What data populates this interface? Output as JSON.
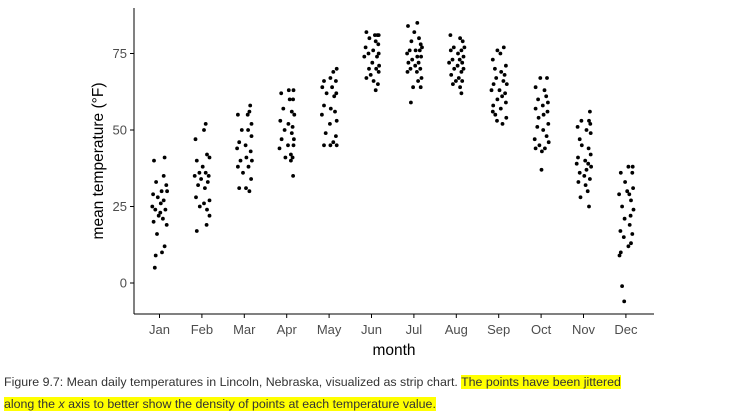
{
  "chart_data": {
    "type": "scatter",
    "style": "strip chart, jittered along x",
    "xlabel": "month",
    "ylabel": "mean temperature (°F)",
    "categories": [
      "Jan",
      "Feb",
      "Mar",
      "Apr",
      "May",
      "Jun",
      "Jul",
      "Aug",
      "Sep",
      "Oct",
      "Nov",
      "Dec"
    ],
    "yticks": [
      0,
      25,
      50,
      75
    ],
    "ylim": [
      -8,
      89
    ],
    "grid": false,
    "legend": "none",
    "point_color": "#000000",
    "series": [
      {
        "values": [
          [
            -0.13,
            40
          ],
          [
            0.12,
            41
          ],
          [
            0.1,
            35
          ],
          [
            -0.08,
            33
          ],
          [
            0.16,
            32
          ],
          [
            -0.15,
            29
          ],
          [
            0.05,
            30
          ],
          [
            0.18,
            30
          ],
          [
            -0.04,
            28
          ],
          [
            0.1,
            27
          ],
          [
            -0.17,
            25
          ],
          [
            0.03,
            26
          ],
          [
            -0.1,
            24
          ],
          [
            0.14,
            24
          ],
          [
            -0.02,
            22
          ],
          [
            0.08,
            21
          ],
          [
            -0.14,
            20
          ],
          [
            0.17,
            19
          ],
          [
            -0.06,
            16
          ],
          [
            0.12,
            12
          ],
          [
            0.06,
            10
          ],
          [
            -0.09,
            9
          ],
          [
            -0.11,
            5
          ],
          [
            0.02,
            23
          ]
        ]
      },
      {
        "values": [
          [
            0.09,
            52
          ],
          [
            0.05,
            50
          ],
          [
            -0.15,
            47
          ],
          [
            0.12,
            42
          ],
          [
            0.18,
            41
          ],
          [
            -0.12,
            40
          ],
          [
            0.02,
            38
          ],
          [
            -0.06,
            36
          ],
          [
            0.09,
            36
          ],
          [
            0.16,
            35
          ],
          [
            -0.17,
            35
          ],
          [
            -0.02,
            34
          ],
          [
            0.14,
            33
          ],
          [
            -0.09,
            32
          ],
          [
            0.07,
            31
          ],
          [
            -0.14,
            28
          ],
          [
            0.18,
            27
          ],
          [
            0.05,
            26
          ],
          [
            -0.05,
            25
          ],
          [
            0.12,
            24
          ],
          [
            0.18,
            22
          ],
          [
            0.11,
            19
          ],
          [
            -0.12,
            17
          ]
        ]
      },
      {
        "values": [
          [
            0.14,
            58
          ],
          [
            0.12,
            56
          ],
          [
            -0.15,
            55
          ],
          [
            0.08,
            55
          ],
          [
            0.17,
            52
          ],
          [
            -0.06,
            50
          ],
          [
            0.09,
            50
          ],
          [
            0.17,
            48
          ],
          [
            -0.12,
            46
          ],
          [
            0.03,
            45
          ],
          [
            -0.17,
            44
          ],
          [
            0.15,
            43
          ],
          [
            0.05,
            41
          ],
          [
            -0.09,
            40
          ],
          [
            0.18,
            40
          ],
          [
            -0.15,
            38
          ],
          [
            0.1,
            38
          ],
          [
            -0.03,
            36
          ],
          [
            0.16,
            34
          ],
          [
            -0.12,
            31
          ],
          [
            0.04,
            31
          ],
          [
            0.12,
            30
          ]
        ]
      },
      {
        "values": [
          [
            0.05,
            63
          ],
          [
            0.16,
            63
          ],
          [
            -0.13,
            62
          ],
          [
            0.07,
            60
          ],
          [
            0.15,
            60
          ],
          [
            -0.08,
            57
          ],
          [
            0.12,
            56
          ],
          [
            0.18,
            55
          ],
          [
            -0.15,
            53
          ],
          [
            0.04,
            52
          ],
          [
            0.14,
            51
          ],
          [
            -0.05,
            50
          ],
          [
            0.12,
            49
          ],
          [
            0.17,
            47
          ],
          [
            -0.12,
            47
          ],
          [
            0.03,
            45
          ],
          [
            0.16,
            45
          ],
          [
            -0.17,
            44
          ],
          [
            0.1,
            42
          ],
          [
            0.14,
            41
          ],
          [
            -0.03,
            41
          ],
          [
            0.1,
            40
          ],
          [
            0.15,
            35
          ]
        ]
      },
      {
        "values": [
          [
            0.18,
            70
          ],
          [
            0.1,
            69
          ],
          [
            -0.12,
            66
          ],
          [
            0.03,
            67
          ],
          [
            0.16,
            66
          ],
          [
            -0.16,
            64
          ],
          [
            0.07,
            64
          ],
          [
            0.17,
            62
          ],
          [
            -0.06,
            62
          ],
          [
            0.12,
            61
          ],
          [
            -0.12,
            58
          ],
          [
            0.04,
            57
          ],
          [
            0.14,
            56
          ],
          [
            -0.17,
            55
          ],
          [
            0.18,
            53
          ],
          [
            0.02,
            52
          ],
          [
            -0.08,
            49
          ],
          [
            0.16,
            48
          ],
          [
            0.1,
            46
          ],
          [
            -0.12,
            45
          ],
          [
            0.03,
            45
          ],
          [
            0.18,
            45
          ]
        ]
      },
      {
        "values": [
          [
            -0.12,
            82
          ],
          [
            0.08,
            81
          ],
          [
            0.14,
            81
          ],
          [
            0.17,
            81
          ],
          [
            -0.05,
            80
          ],
          [
            0.1,
            79
          ],
          [
            0.16,
            78
          ],
          [
            -0.14,
            77
          ],
          [
            0.04,
            76
          ],
          [
            0.17,
            75
          ],
          [
            -0.07,
            75
          ],
          [
            0.13,
            74
          ],
          [
            -0.17,
            74
          ],
          [
            0.02,
            72
          ],
          [
            0.18,
            71
          ],
          [
            0.11,
            70
          ],
          [
            -0.06,
            70
          ],
          [
            0.17,
            69
          ],
          [
            -0.12,
            67
          ],
          [
            0.05,
            66
          ],
          [
            0.15,
            65
          ],
          [
            0.1,
            63
          ],
          [
            -0.02,
            68
          ]
        ]
      },
      {
        "values": [
          [
            0.08,
            85
          ],
          [
            -0.14,
            84
          ],
          [
            0.01,
            82
          ],
          [
            0.12,
            80
          ],
          [
            -0.06,
            79
          ],
          [
            0.16,
            78
          ],
          [
            0.19,
            77
          ],
          [
            -0.1,
            76
          ],
          [
            0.04,
            76
          ],
          [
            0.14,
            76
          ],
          [
            -0.16,
            75
          ],
          [
            0.08,
            74
          ],
          [
            0.17,
            74
          ],
          [
            -0.04,
            73
          ],
          [
            0.11,
            72
          ],
          [
            -0.13,
            72
          ],
          [
            0.03,
            71
          ],
          [
            0.15,
            70
          ],
          [
            -0.08,
            70
          ],
          [
            0.07,
            69
          ],
          [
            0.18,
            67
          ],
          [
            -0.02,
            64
          ],
          [
            0.16,
            64
          ],
          [
            -0.07,
            59
          ],
          [
            0.1,
            66
          ],
          [
            -0.15,
            69
          ]
        ]
      },
      {
        "values": [
          [
            -0.14,
            81
          ],
          [
            0.09,
            80
          ],
          [
            0.15,
            79
          ],
          [
            0.19,
            77
          ],
          [
            -0.06,
            77
          ],
          [
            0.12,
            76
          ],
          [
            -0.13,
            76
          ],
          [
            0.04,
            75
          ],
          [
            0.17,
            74
          ],
          [
            -0.09,
            73
          ],
          [
            0.08,
            73
          ],
          [
            0.14,
            72
          ],
          [
            -0.17,
            72
          ],
          [
            0.03,
            71
          ],
          [
            0.17,
            70
          ],
          [
            -0.05,
            70
          ],
          [
            0.12,
            69
          ],
          [
            -0.12,
            68
          ],
          [
            0.06,
            67
          ],
          [
            -0.01,
            66
          ],
          [
            0.14,
            66
          ],
          [
            0.09,
            64
          ],
          [
            0.12,
            62
          ],
          [
            -0.08,
            65
          ]
        ]
      },
      {
        "values": [
          [
            0.12,
            77
          ],
          [
            -0.03,
            76
          ],
          [
            0.04,
            75
          ],
          [
            -0.14,
            73
          ],
          [
            0.17,
            71
          ],
          [
            -0.09,
            70
          ],
          [
            0.06,
            69
          ],
          [
            0.14,
            68
          ],
          [
            -0.06,
            67
          ],
          [
            0.11,
            66
          ],
          [
            0.19,
            65
          ],
          [
            -0.12,
            65
          ],
          [
            0.02,
            63
          ],
          [
            -0.17,
            63
          ],
          [
            0.15,
            62
          ],
          [
            0.08,
            61
          ],
          [
            -0.03,
            60
          ],
          [
            0.17,
            59
          ],
          [
            -0.13,
            58
          ],
          [
            0.05,
            57
          ],
          [
            -0.08,
            55
          ],
          [
            0.18,
            54
          ],
          [
            -0.04,
            53
          ],
          [
            0.09,
            52
          ],
          [
            -0.14,
            56
          ]
        ]
      },
      {
        "values": [
          [
            -0.02,
            67
          ],
          [
            0.14,
            67
          ],
          [
            -0.13,
            64
          ],
          [
            0.08,
            63
          ],
          [
            0.12,
            61
          ],
          [
            -0.07,
            60
          ],
          [
            0.16,
            59
          ],
          [
            0.04,
            58
          ],
          [
            -0.13,
            57
          ],
          [
            0.15,
            56
          ],
          [
            0.06,
            55
          ],
          [
            -0.06,
            54
          ],
          [
            0.17,
            52
          ],
          [
            -0.09,
            51
          ],
          [
            0.05,
            50
          ],
          [
            0.13,
            48
          ],
          [
            -0.15,
            47
          ],
          [
            0.18,
            46
          ],
          [
            -0.04,
            45
          ],
          [
            0.09,
            44
          ],
          [
            -0.13,
            44
          ],
          [
            0.02,
            43
          ],
          [
            0.01,
            37
          ]
        ]
      },
      {
        "values": [
          [
            0.15,
            56
          ],
          [
            -0.05,
            53
          ],
          [
            0.13,
            53
          ],
          [
            0.16,
            52
          ],
          [
            -0.14,
            51
          ],
          [
            0.07,
            50
          ],
          [
            0.17,
            49
          ],
          [
            -0.09,
            47
          ],
          [
            -0.04,
            45
          ],
          [
            0.12,
            44
          ],
          [
            0.17,
            42
          ],
          [
            -0.13,
            41
          ],
          [
            0.04,
            40
          ],
          [
            -0.16,
            39
          ],
          [
            0.11,
            39
          ],
          [
            0.18,
            38
          ],
          [
            0.07,
            37
          ],
          [
            -0.09,
            36
          ],
          [
            0.02,
            35
          ],
          [
            0.15,
            34
          ],
          [
            -0.12,
            33
          ],
          [
            0.05,
            32
          ],
          [
            0.1,
            30
          ],
          [
            -0.07,
            28
          ],
          [
            0.13,
            25
          ]
        ]
      },
      {
        "values": [
          [
            0.06,
            38
          ],
          [
            0.16,
            38
          ],
          [
            -0.12,
            36
          ],
          [
            0.15,
            36
          ],
          [
            -0.02,
            33
          ],
          [
            0.17,
            31
          ],
          [
            0.03,
            30
          ],
          [
            0.08,
            29
          ],
          [
            -0.16,
            29
          ],
          [
            0.12,
            27
          ],
          [
            -0.09,
            25
          ],
          [
            0.18,
            24
          ],
          [
            0.11,
            22
          ],
          [
            -0.03,
            21
          ],
          [
            0.09,
            19
          ],
          [
            -0.13,
            17
          ],
          [
            0.15,
            16
          ],
          [
            -0.05,
            15
          ],
          [
            0.12,
            13
          ],
          [
            0.06,
            12
          ],
          [
            -0.12,
            10
          ],
          [
            -0.15,
            9
          ],
          [
            -0.09,
            -1
          ],
          [
            -0.04,
            -6
          ]
        ]
      }
    ]
  },
  "caption": {
    "plain": "Figure 9.7: Mean daily temperatures in Lincoln, Nebraska, visualized as strip chart. ",
    "highlight_part1": "The points have been jittered",
    "highlight_part2_pre": "along the ",
    "highlight_part2_italic": "x",
    "highlight_part2_post": " axis to better show the density of points at each temperature value.",
    "highlight_color": "#ffff00"
  }
}
